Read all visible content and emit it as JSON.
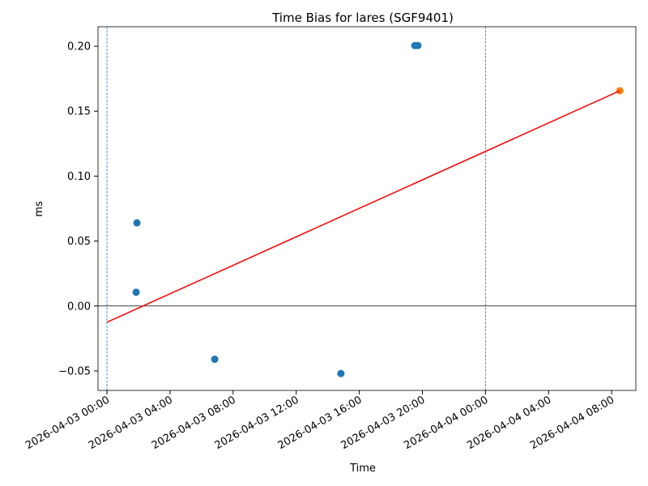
{
  "chart_data": {
    "type": "scatter",
    "title": "Time Bias for lares (SGF9401)",
    "xlabel": "Time",
    "ylabel": "ms",
    "series": [
      {
        "color": "#1f77b4",
        "x": [
          "2026-04-03 01:54",
          "2026-04-03 01:51",
          "2026-04-03 06:50",
          "2026-04-03 14:50",
          "2026-04-03 19:31",
          "2026-04-03 19:43"
        ],
        "values": [
          0.064,
          0.0106,
          -0.041,
          -0.052,
          0.2005,
          0.2005
        ]
      },
      {
        "color": "#ff7f0e",
        "x": [
          "2026-04-04 08:31"
        ],
        "values": [
          0.1657
        ]
      },
      {
        "kind": "line",
        "color": "#ff0000",
        "x": [
          "2026-04-03 00:00",
          "2026-04-04 08:31"
        ],
        "values": [
          -0.0125,
          0.1657
        ]
      }
    ],
    "vlines": {
      "color": "#1f77b4",
      "x": [
        "2026-04-03 00:00",
        "2026-04-04 00:00"
      ]
    },
    "hline": {
      "color": "#000000",
      "value": 0
    },
    "xlim": [
      "2026-04-02 23:26",
      "2026-04-04 09:32"
    ],
    "xticks": [
      "2026-04-03 00:00",
      "2026-04-03 04:00",
      "2026-04-03 08:00",
      "2026-04-03 12:00",
      "2026-04-03 16:00",
      "2026-04-03 20:00",
      "2026-04-04 00:00",
      "2026-04-04 04:00",
      "2026-04-04 08:00"
    ],
    "ylim": [
      -0.065,
      0.215
    ],
    "yticks": [
      {
        "value": -0.05,
        "label": "−0.05"
      },
      {
        "value": 0,
        "label": "0.00"
      },
      {
        "value": 0.05,
        "label": "0.05"
      },
      {
        "value": 0.1,
        "label": "0.10"
      },
      {
        "value": 0.15,
        "label": "0.15"
      },
      {
        "value": 0.2,
        "label": "0.20"
      }
    ]
  }
}
